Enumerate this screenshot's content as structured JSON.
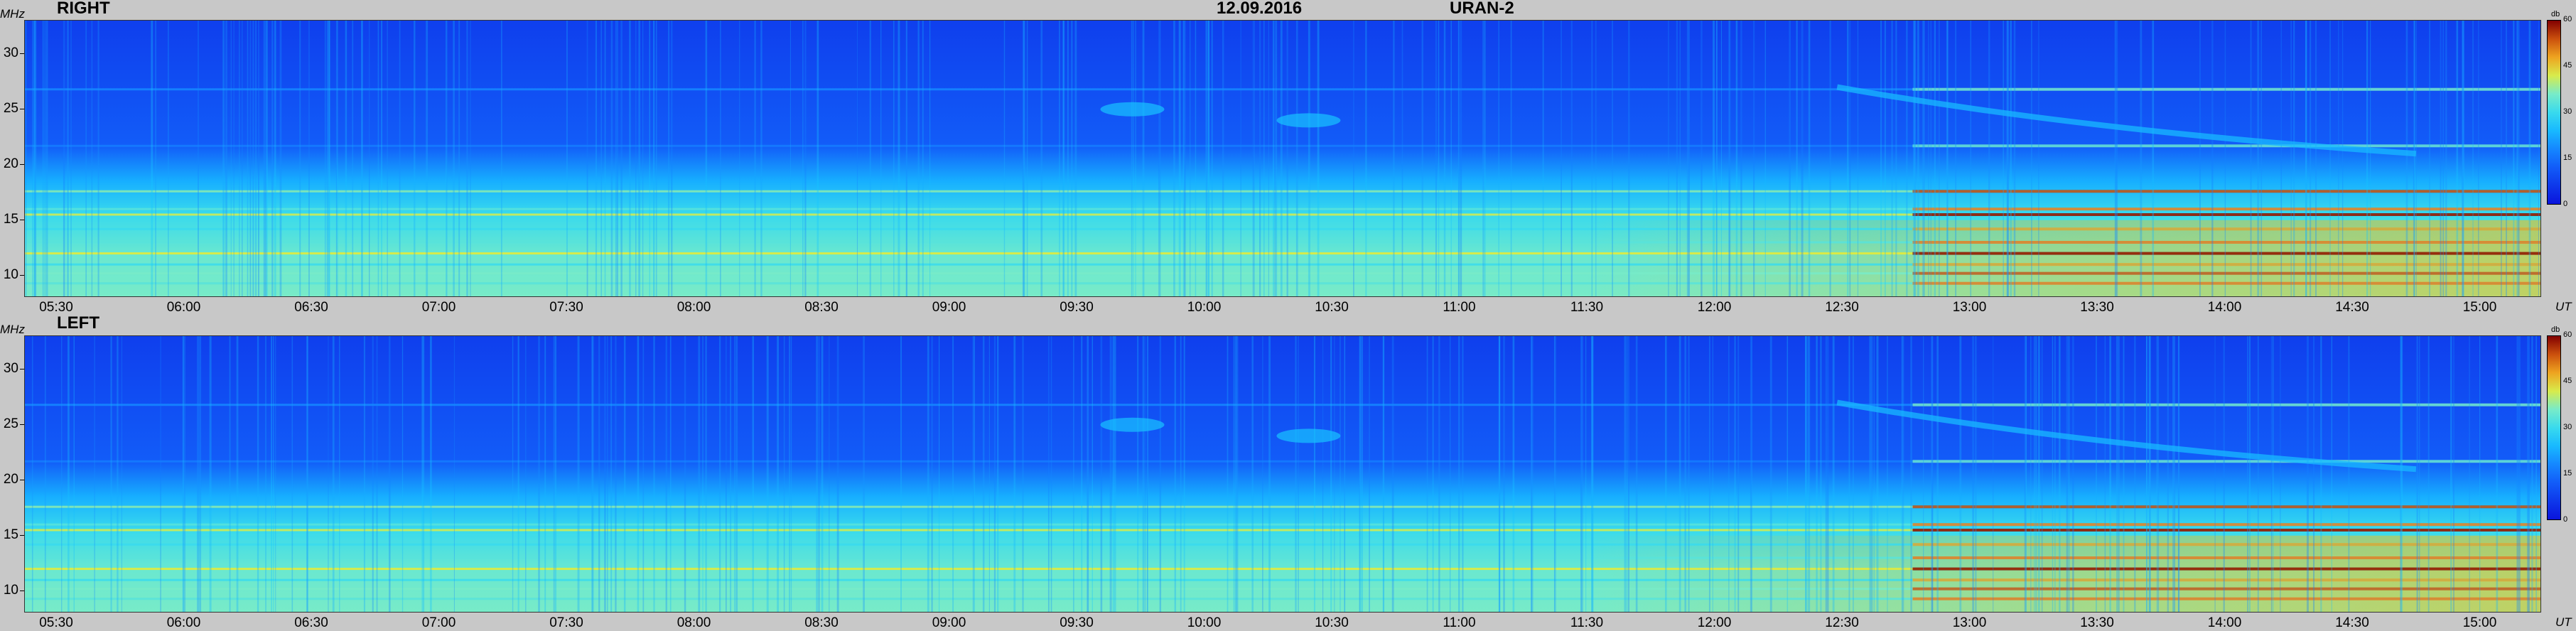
{
  "header": {
    "date": "12.09.2016",
    "station": "URAN-2"
  },
  "chart_data": [
    {
      "type": "heatmap",
      "title": "RIGHT",
      "ylabel": "MHz",
      "xlabel": "UT",
      "x_ticks": [
        "05:30",
        "06:00",
        "06:30",
        "07:00",
        "07:30",
        "08:00",
        "08:30",
        "09:00",
        "09:30",
        "10:00",
        "10:30",
        "11:00",
        "11:30",
        "12:00",
        "12:30",
        "13:00",
        "13:30",
        "14:00",
        "14:30",
        "15:00"
      ],
      "y_ticks": [
        10,
        15,
        20,
        25,
        30
      ],
      "ylim": [
        8,
        33
      ],
      "colorbar": {
        "unit": "db",
        "ticks": [
          0,
          15,
          30,
          45,
          60
        ],
        "range": [
          0,
          60
        ]
      },
      "colors": {
        "low": "#0a1ee6",
        "mid": "#12c8ff",
        "high": "#e8e62a",
        "max": "#8a0000"
      }
    },
    {
      "type": "heatmap",
      "title": "LEFT",
      "ylabel": "MHz",
      "xlabel": "UT",
      "x_ticks": [
        "05:30",
        "06:00",
        "06:30",
        "07:00",
        "07:30",
        "08:00",
        "08:30",
        "09:00",
        "09:30",
        "10:00",
        "10:30",
        "11:00",
        "11:30",
        "12:00",
        "12:30",
        "13:00",
        "13:30",
        "14:00",
        "14:30",
        "15:00"
      ],
      "y_ticks": [
        10,
        15,
        20,
        25,
        30
      ],
      "ylim": [
        8,
        33
      ],
      "colorbar": {
        "unit": "db",
        "ticks": [
          0,
          15,
          30,
          45,
          60
        ],
        "range": [
          0,
          60
        ]
      },
      "colors": {
        "low": "#0a1ee6",
        "mid": "#12c8ff",
        "high": "#e8e62a",
        "max": "#8a0000"
      }
    }
  ]
}
